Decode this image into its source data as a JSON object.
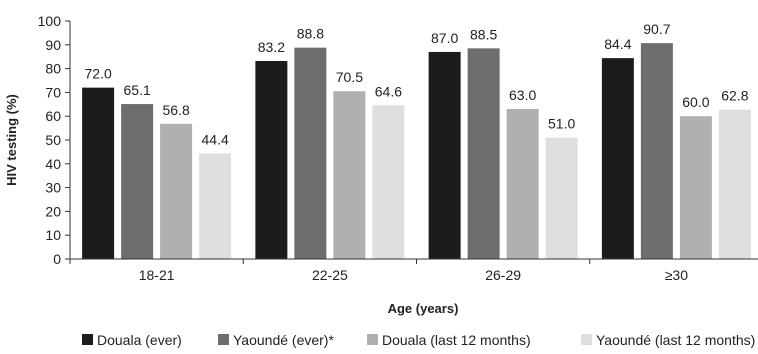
{
  "chart_data": {
    "type": "bar",
    "xlabel": "Age (years)",
    "ylabel": "HIV testing (%)",
    "ylim": [
      0,
      100
    ],
    "yticks": [
      0,
      10,
      20,
      30,
      40,
      50,
      60,
      70,
      80,
      90,
      100
    ],
    "categories": [
      "18-21",
      "22-25",
      "26-29",
      "≥30"
    ],
    "series": [
      {
        "name": "Douala (ever)",
        "color": "#1c1c1c",
        "values": [
          72.0,
          83.2,
          87.0,
          84.4
        ],
        "labels": [
          "72.0",
          "83.2",
          "87.0",
          "84.4"
        ]
      },
      {
        "name": "Yaoundé (ever)*",
        "color": "#6d6d6d",
        "values": [
          65.1,
          88.8,
          88.5,
          90.7
        ],
        "labels": [
          "65.1",
          "88.8",
          "88.5",
          "90.7"
        ]
      },
      {
        "name": "Douala (last 12 months)",
        "color": "#b0b0b0",
        "values": [
          56.8,
          70.5,
          63.0,
          60.0
        ],
        "labels": [
          "56.8",
          "70.5",
          "63.0",
          "60.0"
        ]
      },
      {
        "name": "Yaoundé (last 12 months)",
        "color": "#dedede",
        "values": [
          44.4,
          64.6,
          51.0,
          62.8
        ],
        "labels": [
          "44.4",
          "64.6",
          "51.0",
          "62.8"
        ]
      }
    ],
    "grid": false,
    "legend_position": "bottom"
  }
}
